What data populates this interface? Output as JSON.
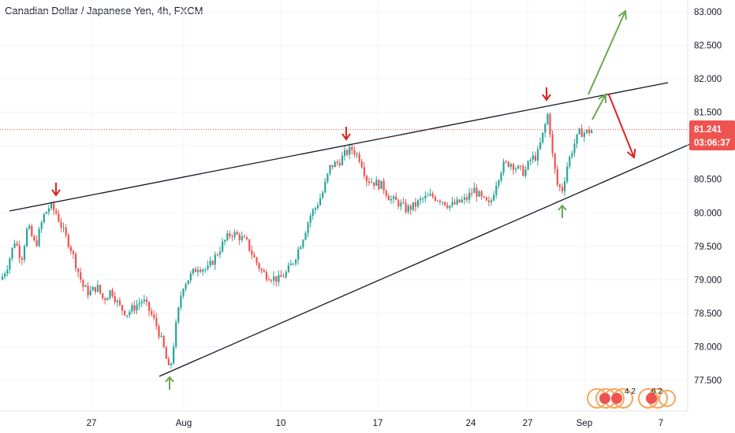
{
  "header": {
    "title": "Canadian Dollar / Japanese Yen, 4h, FXCM"
  },
  "price_tag": {
    "value": "81.241",
    "countdown": "03:06:37",
    "color": "#ef5350"
  },
  "watermark": {
    "left_digits": "4 2",
    "right_digits": "6 2"
  },
  "colors": {
    "up": "#26a69a",
    "down": "#ef5350",
    "line": "#131722",
    "up_arrow": "#6aa84f",
    "down_arrow": "#e02020"
  },
  "chart_data": {
    "type": "candlestick",
    "title": "Canadian Dollar / Japanese Yen, 4h, FXCM",
    "y_axis": {
      "labels": [
        "83.000",
        "82.500",
        "82.000",
        "81.500",
        "81.000",
        "80.500",
        "80.000",
        "79.500",
        "79.000",
        "78.500",
        "78.000",
        "77.500"
      ],
      "ylim": [
        77.1,
        83.1
      ]
    },
    "x_axis": {
      "labels": [
        "27",
        "Aug",
        "10",
        "17",
        "24",
        "27",
        "Sep",
        "7"
      ]
    },
    "last_price": 81.241,
    "path_points": [
      {
        "t": 0,
        "p": 79.0
      },
      {
        "t": 8,
        "p": 79.2
      },
      {
        "t": 18,
        "p": 79.6
      },
      {
        "t": 26,
        "p": 79.3
      },
      {
        "t": 34,
        "p": 79.8
      },
      {
        "t": 44,
        "p": 79.5
      },
      {
        "t": 54,
        "p": 79.95
      },
      {
        "t": 62,
        "p": 80.1
      },
      {
        "t": 70,
        "p": 80.0
      },
      {
        "t": 80,
        "p": 79.7
      },
      {
        "t": 88,
        "p": 79.5
      },
      {
        "t": 96,
        "p": 79.2
      },
      {
        "t": 104,
        "p": 78.9
      },
      {
        "t": 112,
        "p": 78.8
      },
      {
        "t": 122,
        "p": 78.9
      },
      {
        "t": 130,
        "p": 78.7
      },
      {
        "t": 140,
        "p": 78.85
      },
      {
        "t": 150,
        "p": 78.6
      },
      {
        "t": 160,
        "p": 78.5
      },
      {
        "t": 170,
        "p": 78.6
      },
      {
        "t": 180,
        "p": 78.7
      },
      {
        "t": 190,
        "p": 78.5
      },
      {
        "t": 198,
        "p": 78.3
      },
      {
        "t": 206,
        "p": 78.0
      },
      {
        "t": 214,
        "p": 77.6
      },
      {
        "t": 222,
        "p": 78.3
      },
      {
        "t": 230,
        "p": 78.9
      },
      {
        "t": 240,
        "p": 79.05
      },
      {
        "t": 250,
        "p": 79.2
      },
      {
        "t": 262,
        "p": 79.15
      },
      {
        "t": 272,
        "p": 79.35
      },
      {
        "t": 282,
        "p": 79.55
      },
      {
        "t": 292,
        "p": 79.7
      },
      {
        "t": 302,
        "p": 79.65
      },
      {
        "t": 312,
        "p": 79.55
      },
      {
        "t": 322,
        "p": 79.3
      },
      {
        "t": 332,
        "p": 79.1
      },
      {
        "t": 342,
        "p": 79.05
      },
      {
        "t": 352,
        "p": 79.0
      },
      {
        "t": 362,
        "p": 79.1
      },
      {
        "t": 372,
        "p": 79.3
      },
      {
        "t": 382,
        "p": 79.6
      },
      {
        "t": 392,
        "p": 79.95
      },
      {
        "t": 400,
        "p": 80.1
      },
      {
        "t": 408,
        "p": 80.3
      },
      {
        "t": 418,
        "p": 80.7
      },
      {
        "t": 428,
        "p": 80.75
      },
      {
        "t": 438,
        "p": 80.9
      },
      {
        "t": 446,
        "p": 80.95
      },
      {
        "t": 456,
        "p": 80.8
      },
      {
        "t": 464,
        "p": 80.5
      },
      {
        "t": 474,
        "p": 80.45
      },
      {
        "t": 484,
        "p": 80.4
      },
      {
        "t": 494,
        "p": 80.2
      },
      {
        "t": 504,
        "p": 80.15
      },
      {
        "t": 514,
        "p": 80.05
      },
      {
        "t": 524,
        "p": 80.1
      },
      {
        "t": 534,
        "p": 80.2
      },
      {
        "t": 546,
        "p": 80.25
      },
      {
        "t": 558,
        "p": 80.2
      },
      {
        "t": 570,
        "p": 80.1
      },
      {
        "t": 580,
        "p": 80.15
      },
      {
        "t": 590,
        "p": 80.2
      },
      {
        "t": 600,
        "p": 80.35
      },
      {
        "t": 610,
        "p": 80.2
      },
      {
        "t": 620,
        "p": 80.1
      },
      {
        "t": 628,
        "p": 80.45
      },
      {
        "t": 636,
        "p": 80.7
      },
      {
        "t": 646,
        "p": 80.75
      },
      {
        "t": 656,
        "p": 80.65
      },
      {
        "t": 664,
        "p": 80.6
      },
      {
        "t": 672,
        "p": 80.8
      },
      {
        "t": 680,
        "p": 80.85
      },
      {
        "t": 688,
        "p": 81.2
      },
      {
        "t": 694,
        "p": 81.5
      },
      {
        "t": 700,
        "p": 80.8
      },
      {
        "t": 706,
        "p": 80.4
      },
      {
        "t": 712,
        "p": 80.35
      },
      {
        "t": 718,
        "p": 80.7
      },
      {
        "t": 726,
        "p": 81.0
      },
      {
        "t": 734,
        "p": 81.2
      },
      {
        "t": 742,
        "p": 81.2
      },
      {
        "t": 750,
        "p": 81.24
      }
    ],
    "trendlines": {
      "upper": [
        {
          "x": 12,
          "y": 268
        },
        {
          "x": 847,
          "y": 105
        }
      ],
      "lower": [
        {
          "x": 202,
          "y": 478
        },
        {
          "x": 932,
          "y": 158
        }
      ]
    },
    "markers": {
      "down_arrows": [
        {
          "x": 71,
          "y": 232
        },
        {
          "x": 439,
          "y": 161
        },
        {
          "x": 693,
          "y": 111
        }
      ],
      "up_arrows": [
        {
          "x": 215,
          "y": 479
        },
        {
          "x": 713,
          "y": 261
        }
      ]
    },
    "projection": {
      "green_small": {
        "from": [
          751,
          152
        ],
        "to": [
          768,
          120
        ]
      },
      "green_big": {
        "from": [
          746,
          120
        ],
        "to": [
          793,
          14
        ]
      },
      "red": {
        "from": [
          772,
          120
        ],
        "to": [
          804,
          200
        ]
      }
    }
  }
}
